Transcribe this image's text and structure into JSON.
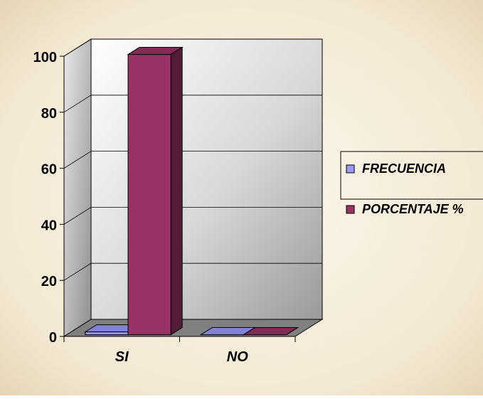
{
  "chart_data": {
    "type": "bar",
    "style": "3d-clustered-column",
    "categories": [
      "SI",
      "NO"
    ],
    "series": [
      {
        "name": "FRECUENCIA",
        "values": [
          1,
          0
        ]
      },
      {
        "name": "PORCENTAJE %",
        "values": [
          100,
          0
        ]
      }
    ],
    "ylim": [
      0,
      100
    ],
    "yticks": [
      0,
      20,
      40,
      60,
      80,
      100
    ],
    "grid": true,
    "legend": "right"
  },
  "colors": {
    "frecuencia": "#9999FF",
    "porcentaje": "#993366",
    "background_center": "#FBF6E9",
    "background_edge": "#E6D6B6"
  }
}
